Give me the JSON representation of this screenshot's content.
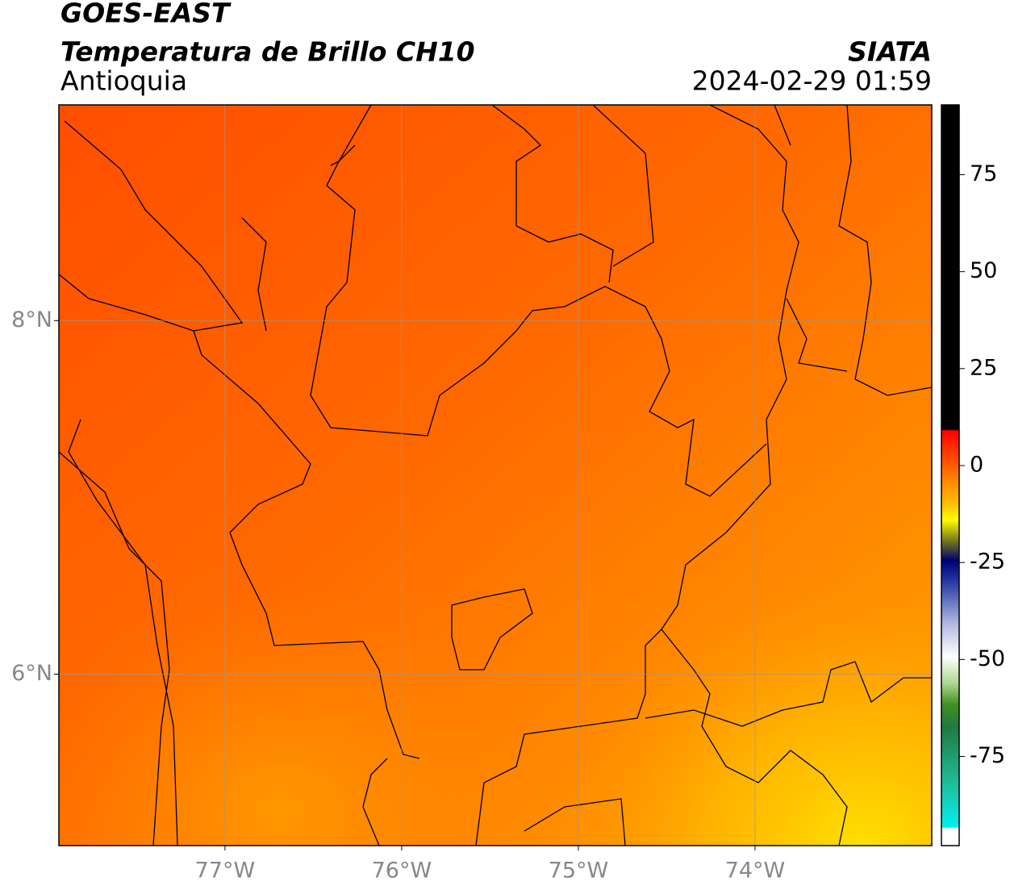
{
  "header": {
    "title": "GOES-EAST",
    "subtitle": "Temperatura de Brillo CH10",
    "region": "Antioquia",
    "source": "SIATA",
    "datetime": "2024-02-29 01:59"
  },
  "map": {
    "xlim": [
      -77.94,
      -73.0
    ],
    "ylim": [
      5.03,
      9.22
    ],
    "xticks": [
      {
        "value": -77,
        "label": "77°W"
      },
      {
        "value": -76,
        "label": "76°W"
      },
      {
        "value": -75,
        "label": "75°W"
      },
      {
        "value": -74,
        "label": "74°W"
      }
    ],
    "yticks": [
      {
        "value": 6,
        "label": "6°N"
      },
      {
        "value": 8,
        "label": "8°N"
      }
    ],
    "grid": true
  },
  "colorbar": {
    "ylim": [
      -98,
      93
    ],
    "yticks": [
      -75,
      -50,
      -25,
      0,
      25,
      50,
      75
    ]
  }
}
